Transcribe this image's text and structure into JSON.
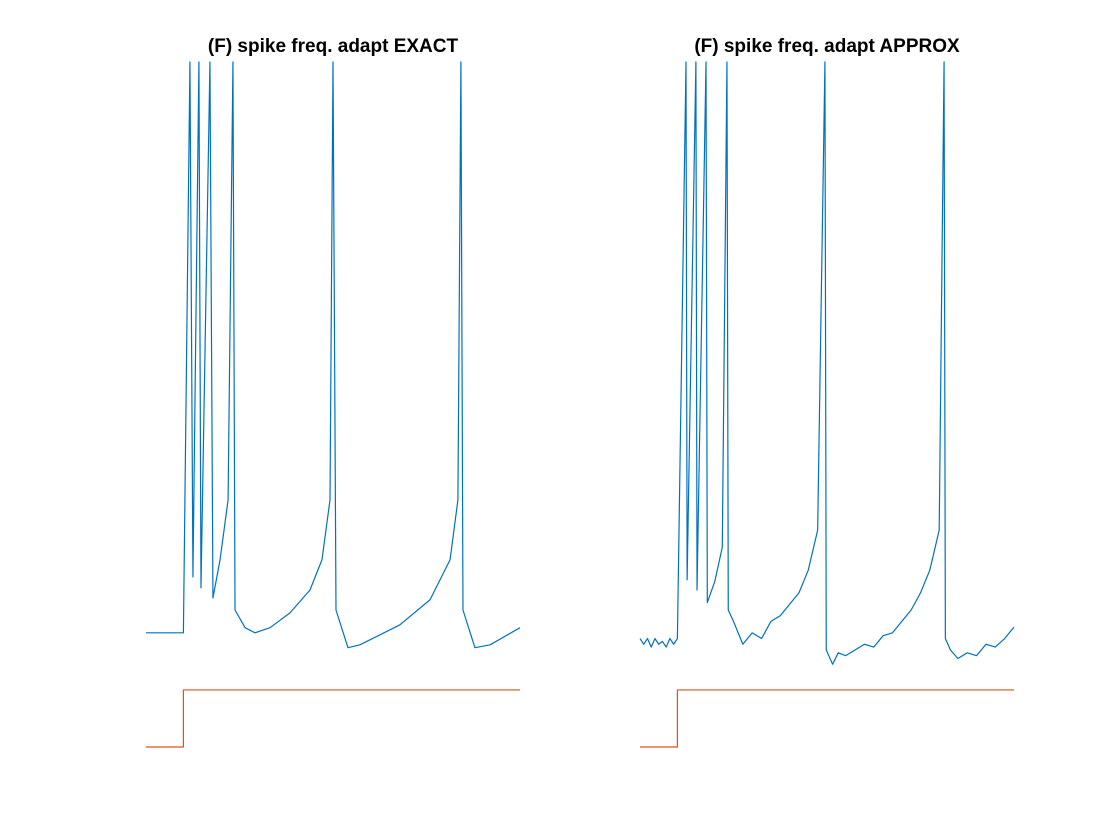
{
  "chart_data": [
    {
      "type": "line",
      "title": "(F) spike freq. adapt EXACT",
      "xlim": [
        0,
        200
      ],
      "ylim": [
        -90,
        30
      ],
      "series": [
        {
          "color": "#0072bd",
          "x": [
            0,
            20,
            23.5,
            25.1,
            28.3,
            29.4,
            34.2,
            35.8,
            39.6,
            43.9,
            46.5,
            47.6,
            53,
            58.3,
            66.3,
            77,
            87.7,
            94.1,
            98.4,
            100,
            101.6,
            108,
            114.4,
            135.8,
            151.9,
            162.6,
            166.8,
            168.4,
            169.5,
            175.9,
            184,
            200
          ],
          "values": [
            -70,
            -70,
            30,
            -60.2,
            30,
            -62.1,
            30,
            -63.9,
            -57.2,
            -46.7,
            30,
            -66,
            -69.1,
            -70,
            -69.1,
            -66.5,
            -62.5,
            -57.2,
            -46.7,
            30,
            -66,
            -72.6,
            -72.1,
            -68.6,
            -64.2,
            -57.2,
            -46.7,
            30,
            -66,
            -72.6,
            -72.1,
            -69.1
          ]
        },
        {
          "color": "#d95319",
          "x": [
            0,
            20,
            20,
            200
          ],
          "values": [
            -90,
            -90,
            -80,
            -80
          ]
        }
      ]
    },
    {
      "type": "line",
      "title": "(F) spike freq. adapt APPROX",
      "xlim": [
        0,
        200
      ],
      "ylim": [
        -90,
        30
      ],
      "series": [
        {
          "color": "#0072bd",
          "x": [
            0,
            2,
            4,
            6,
            8,
            10,
            12,
            14,
            16,
            18,
            20,
            24.6,
            25.2,
            29.9,
            30.5,
            35.3,
            36,
            40,
            44,
            46.5,
            47.2,
            50,
            55,
            60,
            65,
            70,
            75,
            80,
            85,
            90,
            95,
            98.9,
            99.6,
            103,
            106,
            110,
            115,
            120,
            125,
            130,
            135,
            140,
            145,
            150,
            155,
            160,
            162.6,
            163.3,
            166,
            170,
            175,
            180,
            185,
            190,
            195,
            200
          ],
          "values": [
            -71,
            -72,
            -71,
            -72.5,
            -71,
            -72,
            -71.5,
            -72.5,
            -71,
            -72,
            -71,
            30,
            -60.7,
            30,
            -62.5,
            30,
            -64.7,
            -61,
            -55,
            30,
            -66,
            -68,
            -72,
            -70,
            -71,
            -68,
            -67,
            -65,
            -63,
            -59,
            -52,
            30,
            -73,
            -75.5,
            -73.5,
            -74,
            -73,
            -72,
            -72.5,
            -70.5,
            -70,
            -68,
            -66,
            -63,
            -59,
            -52,
            30,
            -71,
            -73,
            -74.5,
            -73.5,
            -74,
            -72,
            -72.5,
            -71,
            -69
          ]
        },
        {
          "color": "#d95319",
          "x": [
            0,
            20,
            20,
            200
          ],
          "values": [
            -90,
            -90,
            -80,
            -80
          ]
        }
      ]
    }
  ]
}
